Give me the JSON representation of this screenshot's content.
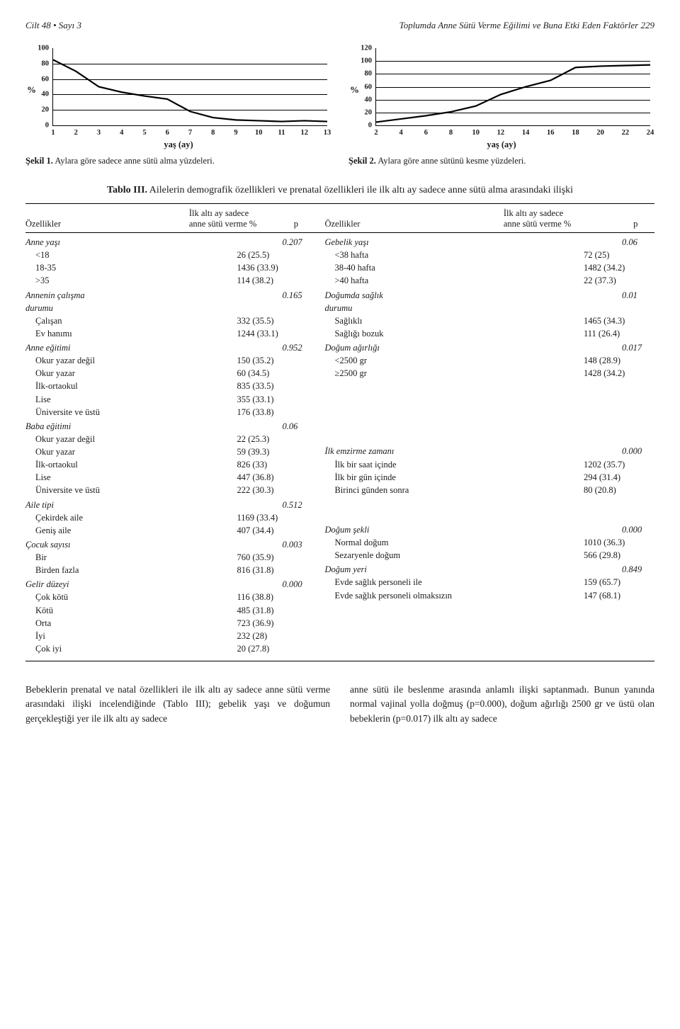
{
  "running_head_left": "Cilt 48 • Sayı 3",
  "running_head_right": "Toplumda Anne Sütü Verme Eğilimi ve Buna Etki Eden Faktörler   229",
  "chart1": {
    "type": "line",
    "yaxis_pct": "%",
    "xaxis_title": "yaş (ay)",
    "ylim": [
      0,
      100
    ],
    "ytick_step": 20,
    "xticks": [
      1,
      2,
      3,
      4,
      5,
      6,
      7,
      8,
      9,
      10,
      11,
      12,
      13
    ],
    "values": [
      85,
      70,
      50,
      43,
      38,
      34,
      18,
      10,
      7,
      6,
      5,
      6,
      5
    ],
    "line_color": "#000000",
    "line_width": 2.2,
    "grid_color": "#000000",
    "caption_b": "Şekil 1.",
    "caption": " Aylara göre sadece anne sütü alma yüzdeleri."
  },
  "chart2": {
    "type": "line",
    "yaxis_pct": "%",
    "xaxis_title": "yaş (ay)",
    "ylim": [
      0,
      120
    ],
    "ytick_step": 20,
    "xticks": [
      2,
      4,
      6,
      8,
      10,
      12,
      14,
      16,
      18,
      20,
      22,
      24
    ],
    "values": [
      5,
      10,
      15,
      21,
      30,
      48,
      60,
      70,
      90,
      92,
      93,
      94
    ],
    "line_color": "#000000",
    "line_width": 2.2,
    "grid_color": "#000000",
    "caption_b": "Şekil 2.",
    "caption": " Aylara göre anne sütünü kesme yüzdeleri."
  },
  "table": {
    "title_b": "Tablo III.",
    "title": " Ailelerin demografik özellikleri ve prenatal özellikleri ile ilk altı ay sadece anne sütü alma arasındaki ilişki",
    "head_ozellikler": "Özellikler",
    "head_left_col": "İlk altı ay sadece\nanne sütü verme %",
    "head_p": "p",
    "head_right_col": "İlk altı ay sadece\nanne sütü verme %"
  },
  "left_groups": [
    {
      "label": "Anne yaşı",
      "p": "0.207",
      "rows": [
        {
          "l": "<18",
          "v": "26 (25.5)"
        },
        {
          "l": "18-35",
          "v": "1436 (33.9)"
        },
        {
          "l": ">35",
          "v": "114 (38.2)"
        }
      ]
    },
    {
      "label": "Annenin çalışma\ndurumu",
      "p": "0.165",
      "rows": [
        {
          "l": "Çalışan",
          "v": "332 (35.5)"
        },
        {
          "l": "Ev hanımı",
          "v": "1244 (33.1)"
        }
      ]
    },
    {
      "label": "Anne eğitimi",
      "p": "0.952",
      "rows": [
        {
          "l": "Okur yazar değil",
          "v": "150 (35.2)"
        },
        {
          "l": "Okur yazar",
          "v": "60 (34.5)"
        },
        {
          "l": "İlk-ortaokul",
          "v": "835 (33.5)"
        },
        {
          "l": "Lise",
          "v": "355 (33.1)"
        },
        {
          "l": "Üniversite ve üstü",
          "v": "176 (33.8)"
        }
      ]
    },
    {
      "label": "Baba eğitimi",
      "p": "0.06",
      "rows": [
        {
          "l": "Okur yazar değil",
          "v": "22 (25.3)"
        },
        {
          "l": "Okur yazar",
          "v": "59 (39.3)"
        },
        {
          "l": "İlk-ortaokul",
          "v": "826 (33)"
        },
        {
          "l": "Lise",
          "v": "447 (36.8)"
        },
        {
          "l": "Üniversite ve üstü",
          "v": "222 (30.3)"
        }
      ]
    },
    {
      "label": "Aile tipi",
      "p": "0.512",
      "rows": [
        {
          "l": "Çekirdek aile",
          "v": "1169 (33.4)"
        },
        {
          "l": "Geniş aile",
          "v": "407 (34.4)"
        }
      ]
    },
    {
      "label": "Çocuk sayısı",
      "p": "0.003",
      "rows": [
        {
          "l": "Bir",
          "v": "760 (35.9)"
        },
        {
          "l": "Birden fazla",
          "v": "816 (31.8)"
        }
      ]
    },
    {
      "label": "Gelir düzeyi",
      "p": "0.000",
      "rows": [
        {
          "l": "Çok kötü",
          "v": "116 (38.8)"
        },
        {
          "l": "Kötü",
          "v": "485 (31.8)"
        },
        {
          "l": "Orta",
          "v": "723 (36.9)"
        },
        {
          "l": "İyi",
          "v": "232 (28)"
        },
        {
          "l": "Çok iyi",
          "v": "20 (27.8)"
        }
      ]
    }
  ],
  "right_groups": [
    {
      "label": "Gebelik yaşı",
      "p": "0.06",
      "rows": [
        {
          "l": "<38 hafta",
          "v": "72 (25)"
        },
        {
          "l": "38-40 hafta",
          "v": "1482 (34.2)"
        },
        {
          "l": ">40 hafta",
          "v": "22 (37.3)"
        }
      ]
    },
    {
      "label": "Doğumda sağlık\ndurumu",
      "p": "0.01",
      "rows": [
        {
          "l": "Sağlıklı",
          "v": "1465 (34.3)"
        },
        {
          "l": "Sağlığı bozuk",
          "v": "111 (26.4)"
        }
      ]
    },
    {
      "label": "Doğum ağırlığı",
      "p": "0.017",
      "rows": [
        {
          "l": "<2500 gr",
          "v": "148 (28.9)"
        },
        {
          "l": "≥2500 gr",
          "v": "1428 (34.2)"
        }
      ]
    },
    {
      "label": "İlk emzirme zamanı",
      "p": "0.000",
      "spacer": 5,
      "rows": [
        {
          "l": "İlk bir saat içinde",
          "v": "1202 (35.7)"
        },
        {
          "l": "İlk bir gün içinde",
          "v": "294 (31.4)"
        },
        {
          "l": "Birinci günden sonra",
          "v": "80 (20.8)"
        }
      ]
    },
    {
      "label": "Doğum şekli",
      "p": "0.000",
      "spacer": 2,
      "rows": [
        {
          "l": "Normal doğum",
          "v": "1010 (36.3)"
        },
        {
          "l": "Sezaryenle doğum",
          "v": "566 (29.8)"
        }
      ]
    },
    {
      "label": "Doğum yeri",
      "p": "0.849",
      "rows": [
        {
          "l": "Evde sağlık personeli ile",
          "v": "159 (65.7)"
        },
        {
          "l": "Evde sağlık personeli olmaksızın",
          "v": "147 (68.1)"
        }
      ]
    }
  ],
  "footer": {
    "left": "Bebeklerin prenatal ve natal özellikleri ile ilk altı ay sadece anne sütü verme arasındaki ilişki incelendiğinde (Tablo III); gebelik yaşı ve doğumun gerçekleştiği yer ile ilk altı ay sadece",
    "right": "anne sütü ile beslenme arasında anlamlı ilişki saptanmadı. Bunun yanında normal vajinal yolla doğmuş (p=0.000), doğum ağırlığı 2500 gr ve üstü olan bebeklerin (p=0.017) ilk altı ay sadece"
  }
}
